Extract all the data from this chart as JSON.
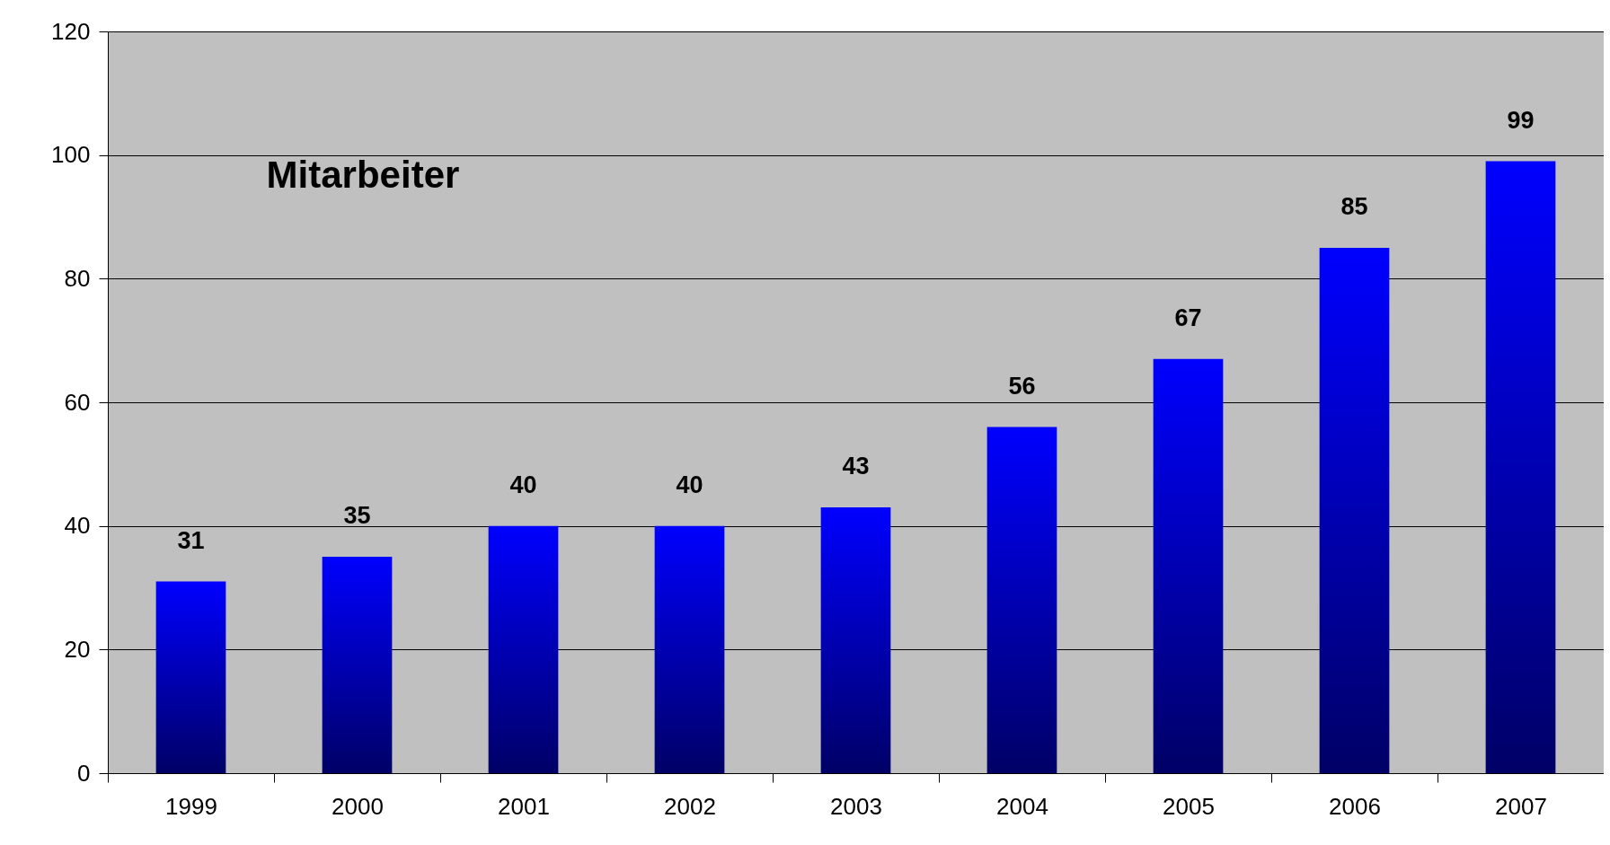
{
  "chart_data": {
    "type": "bar",
    "title": "Mitarbeiter",
    "categories": [
      "1999",
      "2000",
      "2001",
      "2002",
      "2003",
      "2004",
      "2005",
      "2006",
      "2007"
    ],
    "values": [
      31,
      35,
      40,
      40,
      43,
      56,
      67,
      85,
      99
    ],
    "color": "#0000ff",
    "ylim": [
      0,
      120
    ],
    "yticks": [
      0,
      20,
      40,
      60,
      80,
      100,
      120
    ],
    "grid": true,
    "data_labels": true
  }
}
